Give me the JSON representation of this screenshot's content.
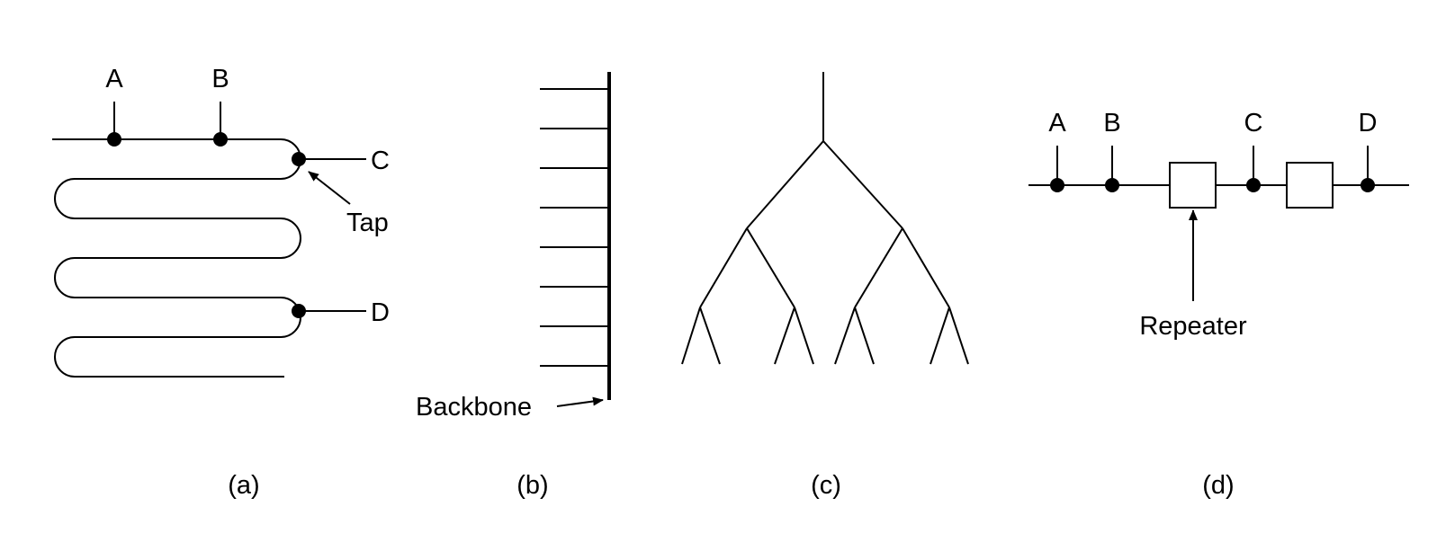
{
  "panel_a": {
    "station_labels": [
      "A",
      "B",
      "C",
      "D"
    ],
    "tap_label": "Tap",
    "caption": "(a)"
  },
  "panel_b": {
    "backbone_label": "Backbone",
    "caption": "(b)"
  },
  "panel_c": {
    "caption": "(c)"
  },
  "panel_d": {
    "station_labels": [
      "A",
      "B",
      "C",
      "D"
    ],
    "repeater_label": "Repeater",
    "caption": "(d)"
  }
}
